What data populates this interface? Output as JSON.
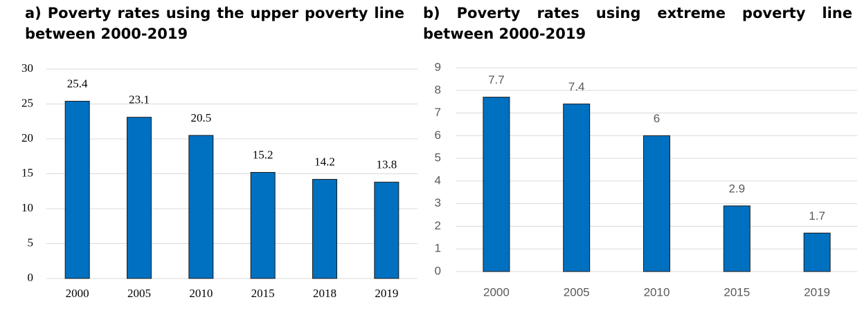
{
  "chart_data": [
    {
      "type": "bar",
      "title": "a) Poverty rates using the upper poverty line between 2000-2019",
      "categories": [
        "2000",
        "2005",
        "2010",
        "2015",
        "2018",
        "2019"
      ],
      "values": [
        25.4,
        23.1,
        20.5,
        15.2,
        14.2,
        13.8
      ],
      "color": "#0070c0",
      "ylim": [
        0,
        30
      ],
      "yticks": [
        0,
        5,
        10,
        15,
        20,
        25,
        30
      ],
      "grid": true
    },
    {
      "type": "bar",
      "title": "b) Poverty rates using extreme poverty line between 2000-2019",
      "categories": [
        "2000",
        "2005",
        "2010",
        "2015",
        "2019"
      ],
      "values": [
        7.7,
        7.4,
        6,
        2.9,
        1.7
      ],
      "color": "#0070c0",
      "ylim": [
        0,
        9
      ],
      "yticks": [
        0,
        1,
        2,
        3,
        4,
        5,
        6,
        7,
        8,
        9
      ],
      "grid": true
    }
  ]
}
